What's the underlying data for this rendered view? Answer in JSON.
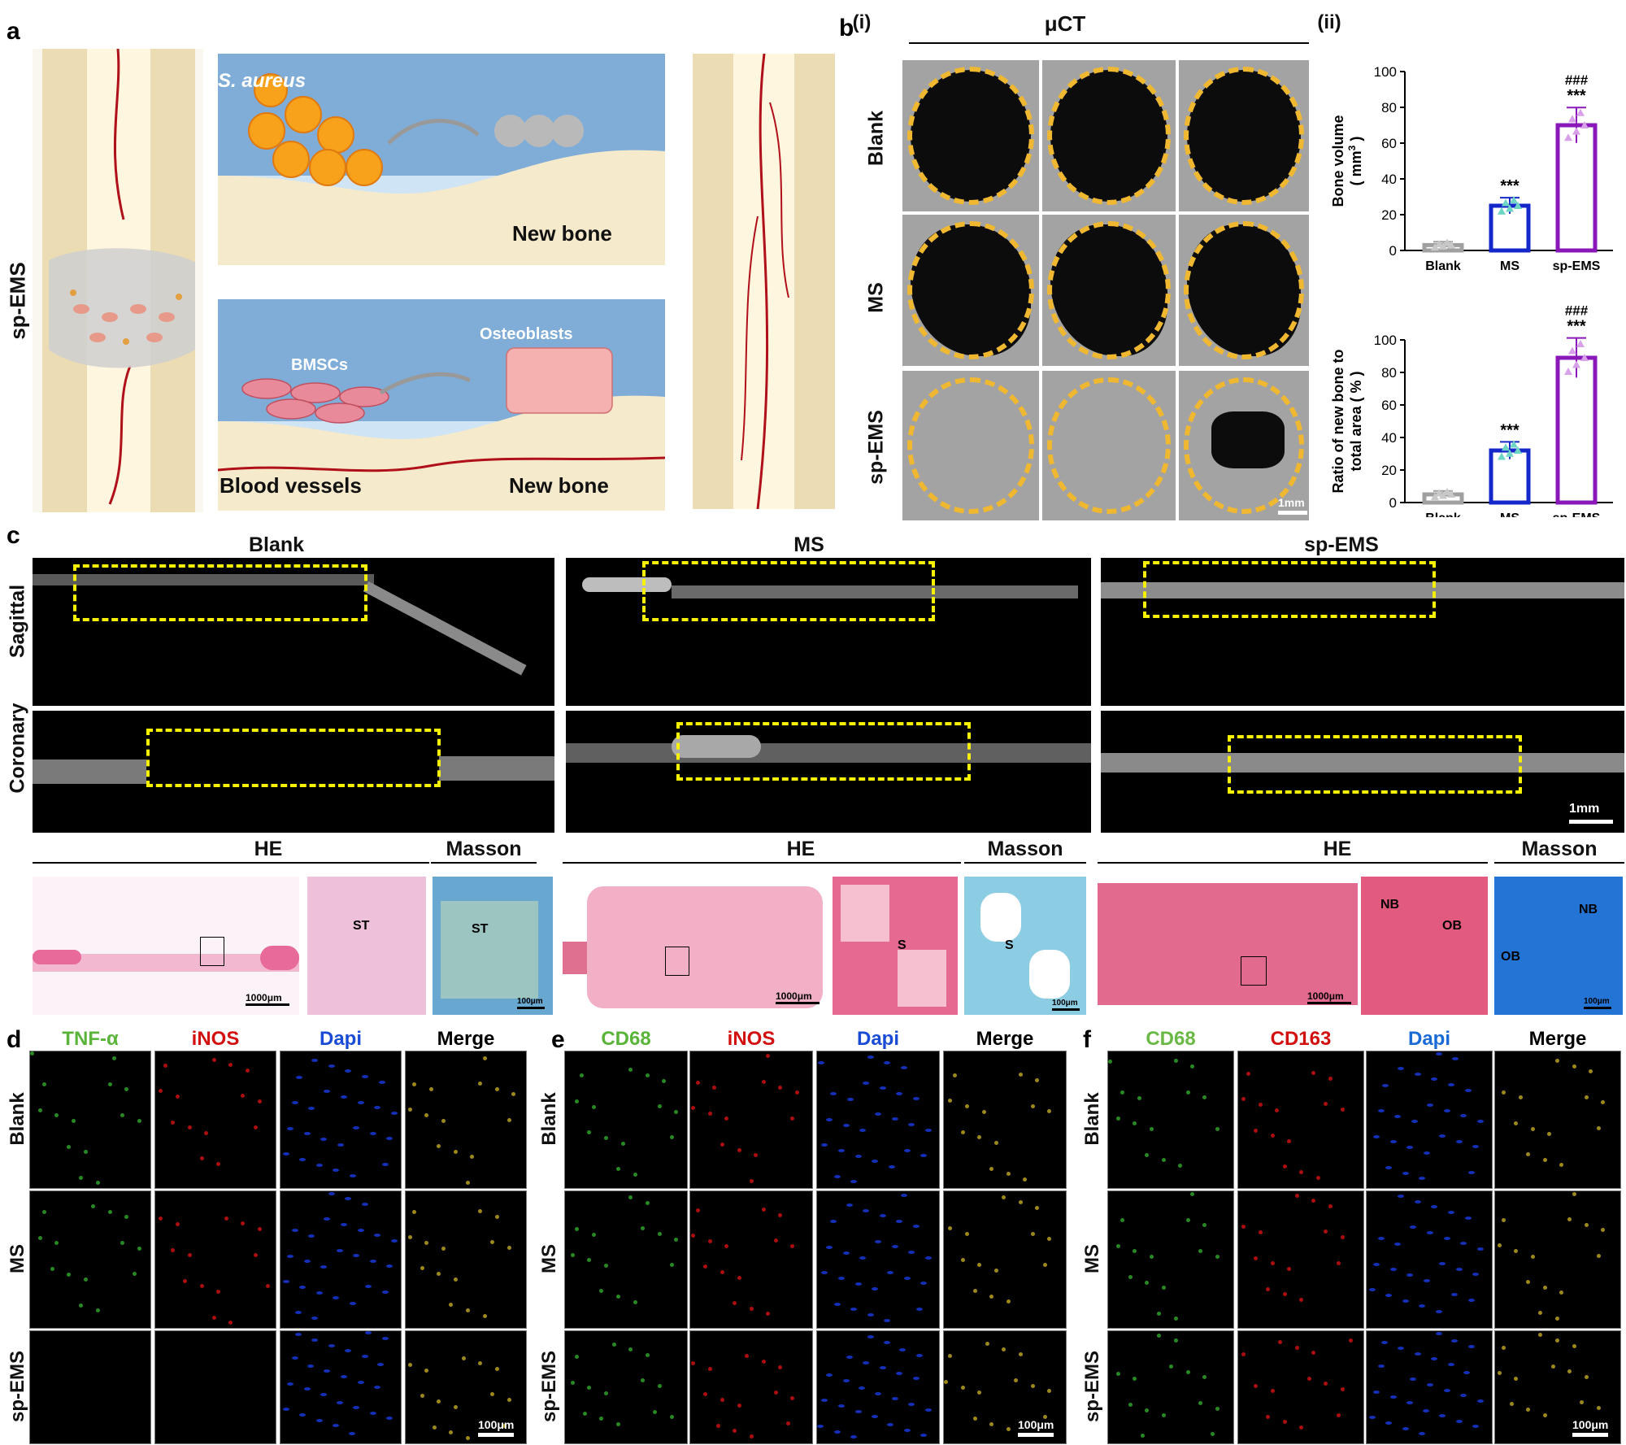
{
  "panel_labels": {
    "a": "a",
    "b": "b",
    "c": "c",
    "d": "d",
    "e": "e",
    "f": "f"
  },
  "panel_a": {
    "side_label": "sp-EMS",
    "s_aureus": "S. aureus",
    "new_bone_top": "New bone",
    "bmscs": "BMSCs",
    "osteoblasts": "Osteoblasts",
    "blood_vessels": "Blood vessels",
    "new_bone_bottom": "New bone"
  },
  "panel_b": {
    "sub_i": "(i)",
    "sub_ii": "(ii)",
    "uct_title": "μCT",
    "rows": [
      "Blank",
      "MS",
      "sp-EMS"
    ],
    "scale": "1mm"
  },
  "chart_data": [
    {
      "type": "bar",
      "categories": [
        "Blank",
        "MS",
        "sp-EMS"
      ],
      "values": [
        3,
        25,
        70
      ],
      "ylabel": "Bone volume ( mm³ )",
      "ylabel_line1": "Bone volume",
      "ylabel_line2": "( mm",
      "ylabel_sup": "3",
      "ylabel_end": " )",
      "ylim": [
        0,
        100
      ],
      "yticks": [
        "0",
        "20",
        "40",
        "60",
        "80",
        "100"
      ],
      "significance": [
        "",
        "***",
        "***"
      ],
      "significance_hash": [
        "",
        "",
        "###"
      ],
      "colors": [
        "#a0a0a0",
        "#1427c8",
        "#8a18b8"
      ],
      "point_colors": [
        "#c8c8c8",
        "#6fd6c6",
        "#d8a0e8"
      ]
    },
    {
      "type": "bar",
      "categories": [
        "Blank",
        "MS",
        "sp-EMS"
      ],
      "values": [
        5,
        32,
        89
      ],
      "ylabel": "Ratio of new bone to total area ( % )",
      "ylabel_line1": "Ratio of new bone to",
      "ylabel_line2": "total area ( % )",
      "ylim": [
        0,
        100
      ],
      "yticks": [
        "0",
        "20",
        "40",
        "60",
        "80",
        "100"
      ],
      "significance": [
        "",
        "***",
        "***"
      ],
      "significance_hash": [
        "",
        "",
        "###"
      ],
      "colors": [
        "#a0a0a0",
        "#1427c8",
        "#8a18b8"
      ],
      "point_colors": [
        "#c8c8c8",
        "#6fd6c6",
        "#d8a0e8"
      ]
    }
  ],
  "panel_c": {
    "groups": [
      "Blank",
      "MS",
      "sp-EMS"
    ],
    "rows": [
      "Sagittal",
      "Coronary"
    ],
    "scale": "1mm",
    "he": "HE",
    "masson": "Masson",
    "blank_labels": {
      "st1": "ST",
      "st2": "ST"
    },
    "ms_labels": {
      "s1": "S",
      "s2": "S"
    },
    "sp_labels": {
      "nb1": "NB",
      "ob1": "OB",
      "nb2": "NB",
      "ob2": "OB"
    },
    "scale_1000": "1000μm",
    "scale_100": "100μm"
  },
  "panel_d": {
    "stains": [
      "TNF-α",
      "iNOS",
      "Dapi",
      "Merge"
    ],
    "rows": [
      "Blank",
      "MS",
      "sp-EMS"
    ],
    "scale": "100μm"
  },
  "panel_e": {
    "stains": [
      "CD68",
      "iNOS",
      "Dapi",
      "Merge"
    ],
    "rows": [
      "Blank",
      "MS",
      "sp-EMS"
    ],
    "scale": "100μm"
  },
  "panel_f": {
    "stains": [
      "CD68",
      "CD163",
      "Dapi",
      "Merge"
    ],
    "rows": [
      "Blank",
      "MS",
      "sp-EMS"
    ],
    "scale": "100μm"
  },
  "colors": {
    "green": "#36b030",
    "red": "#d21010",
    "blue": "#1a4bd6",
    "yellow": "#f5f100",
    "orange_dash": "#f0b830"
  }
}
